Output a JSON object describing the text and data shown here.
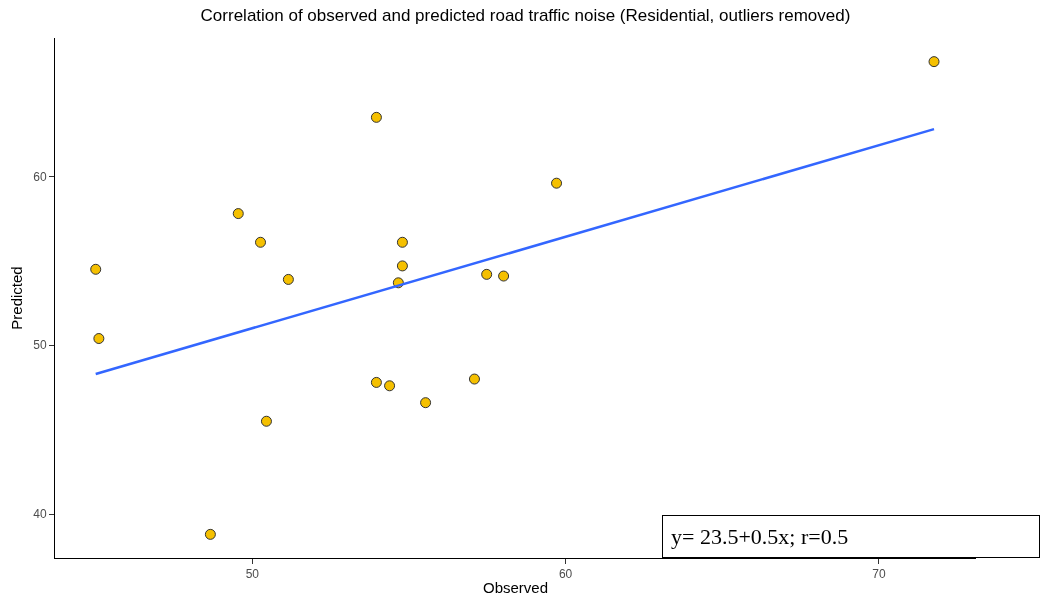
{
  "chart_data": {
    "type": "scatter",
    "title": "Correlation of observed and predicted road traffic noise (Residential, outliers removed)",
    "xlabel": "Observed",
    "ylabel": "Predicted",
    "series": [
      {
        "color": "#f5c000",
        "marker": "circle",
        "x": [
          45.0,
          45.1,
          49.55,
          50.26,
          51.15,
          50.45,
          48.66,
          53.96,
          53.96,
          54.38,
          54.66,
          54.79,
          54.79,
          55.53,
          57.09,
          57.48,
          58.02,
          59.71,
          71.76
        ],
        "values": [
          54.5,
          50.4,
          57.8,
          56.1,
          53.9,
          45.5,
          38.8,
          63.5,
          47.8,
          47.6,
          53.7,
          56.1,
          54.7,
          46.6,
          48.0,
          54.2,
          54.1,
          59.6,
          66.8
        ]
      },
      {
        "type": "line",
        "marker": "none",
        "color": "#3366ff",
        "x": [
          45.0,
          71.76
        ],
        "values": [
          48.3,
          62.8
        ]
      }
    ],
    "xlim": [
      43.7,
      73.1
    ],
    "ylim": [
      37.4,
      68.2
    ],
    "xticks": [
      50,
      60,
      70
    ],
    "yticks": [
      40,
      50,
      60
    ],
    "legend": false,
    "line_style": "solid",
    "annotations": [
      "y= 23.5+0.5x; r=0.5"
    ]
  }
}
